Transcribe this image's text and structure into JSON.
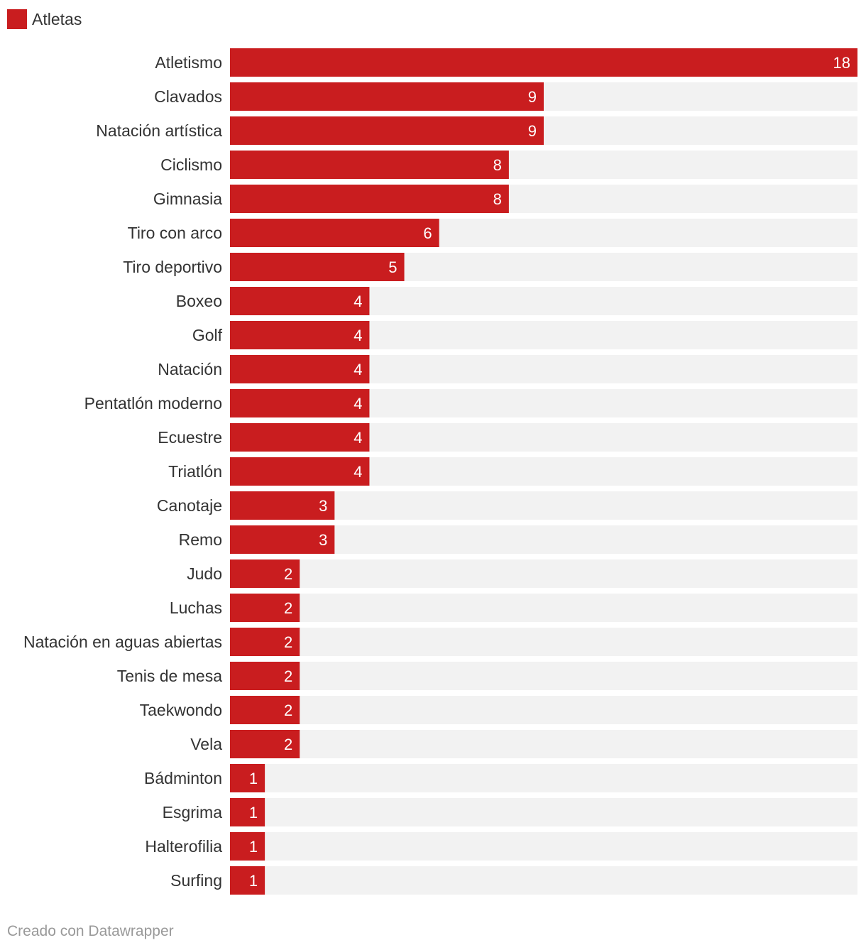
{
  "chart_data": {
    "type": "bar",
    "orientation": "horizontal",
    "categories": [
      "Atletismo",
      "Clavados",
      "Natación artística",
      "Ciclismo",
      "Gimnasia",
      "Tiro con arco",
      "Tiro deportivo",
      "Boxeo",
      "Golf",
      "Natación",
      "Pentatlón moderno",
      "Ecuestre",
      "Triatlón",
      "Canotaje",
      "Remo",
      "Judo",
      "Luchas",
      "Natación en aguas abiertas",
      "Tenis de mesa",
      "Taekwondo",
      "Vela",
      "Bádminton",
      "Esgrima",
      "Halterofilia",
      "Surfing"
    ],
    "series": [
      {
        "name": "Atletas",
        "values": [
          18,
          9,
          9,
          8,
          8,
          6,
          5,
          4,
          4,
          4,
          4,
          4,
          4,
          3,
          3,
          2,
          2,
          2,
          2,
          2,
          2,
          1,
          1,
          1,
          1
        ]
      }
    ],
    "xlim": [
      0,
      18
    ],
    "legend_position": "top-left",
    "grid": false,
    "data_labels": "inside-end"
  },
  "colors": {
    "bar": "#c91d1f",
    "track": "#f2f2f2",
    "text": "#333333",
    "footer": "#999999"
  },
  "legend": {
    "label": "Atletas"
  },
  "footer": {
    "text": "Creado con Datawrapper"
  }
}
